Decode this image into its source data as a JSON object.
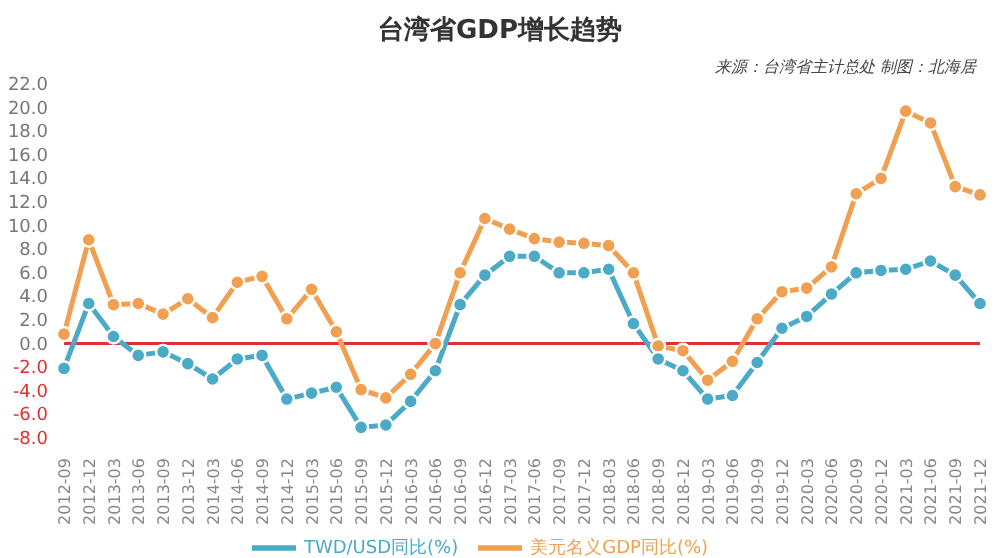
{
  "chart_data": {
    "type": "line",
    "title": "台湾省GDP增长趋势",
    "annotations": [
      "来源：台湾省主计总处  制图：北海居"
    ],
    "categories": [
      "2012-09",
      "2012-12",
      "2013-03",
      "2013-06",
      "2013-09",
      "2013-12",
      "2014-03",
      "2014-06",
      "2014-09",
      "2014-12",
      "2015-03",
      "2015-06",
      "2015-09",
      "2015-12",
      "2016-03",
      "2016-06",
      "2016-09",
      "2016-12",
      "2017-03",
      "2017-06",
      "2017-09",
      "2017-12",
      "2018-03",
      "2018-06",
      "2018-09",
      "2018-12",
      "2019-03",
      "2019-06",
      "2019-09",
      "2019-12",
      "2020-03",
      "2020-06",
      "2020-09",
      "2020-12",
      "2021-03",
      "2021-06",
      "2021-09",
      "2021-12"
    ],
    "series": [
      {
        "name": "美元名义GDP同比(%)",
        "color": "#f0a050",
        "values": [
          0.8,
          8.8,
          3.3,
          3.4,
          2.5,
          3.8,
          2.2,
          5.2,
          5.7,
          2.1,
          4.6,
          1.0,
          -3.9,
          -4.6,
          -2.6,
          0.0,
          6.0,
          10.6,
          9.7,
          8.9,
          8.6,
          8.5,
          8.3,
          6.0,
          -0.2,
          -0.6,
          -3.1,
          -1.5,
          2.1,
          4.4,
          4.7,
          6.5,
          12.7,
          14.0,
          19.7,
          18.7,
          13.3,
          12.6
        ]
      },
      {
        "name": "TWD/USD同比(%)",
        "color": "#4aaac8",
        "values": [
          -2.1,
          3.4,
          0.6,
          -1.0,
          -0.7,
          -1.7,
          -3.0,
          -1.3,
          -1.0,
          -4.7,
          -4.2,
          -3.7,
          -7.1,
          -6.9,
          -4.9,
          -2.3,
          3.3,
          5.8,
          7.4,
          7.4,
          6.0,
          6.0,
          6.3,
          1.7,
          -1.3,
          -2.3,
          -4.7,
          -4.4,
          -1.6,
          1.3,
          2.3,
          4.2,
          6.0,
          6.2,
          6.3,
          7.0,
          5.8,
          3.4
        ]
      }
    ],
    "ylim": [
      -8,
      22
    ],
    "yticks": [
      {
        "value": -8,
        "label": "-8.0"
      },
      {
        "value": -6,
        "label": "-6.0"
      },
      {
        "value": -4,
        "label": "-4.0"
      },
      {
        "value": -2,
        "label": "-2.0"
      },
      {
        "value": 0,
        "label": "0.0"
      },
      {
        "value": 2,
        "label": "2.0"
      },
      {
        "value": 4,
        "label": "4.0"
      },
      {
        "value": 6,
        "label": "6.0"
      },
      {
        "value": 8,
        "label": "8.0"
      },
      {
        "value": 10,
        "label": "10.0"
      },
      {
        "value": 12,
        "label": "12.0"
      },
      {
        "value": 14,
        "label": "14.0"
      },
      {
        "value": 16,
        "label": "16.0"
      },
      {
        "value": 18,
        "label": "18.0"
      },
      {
        "value": 20,
        "label": "20.0"
      },
      {
        "value": 22,
        "label": "22.0"
      }
    ],
    "ref_lines": [
      {
        "axis": "y",
        "value": 0,
        "color": "#e03030"
      }
    ],
    "grid": false,
    "legend": "bottom",
    "marker": "circle",
    "line_style": "solid"
  }
}
